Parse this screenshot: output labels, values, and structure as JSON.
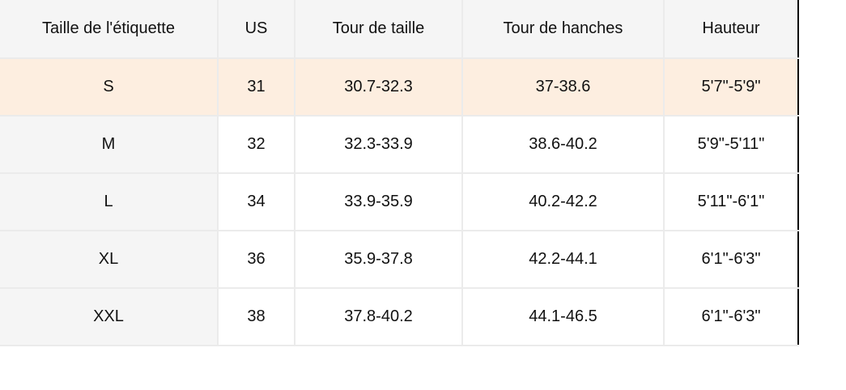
{
  "headers": [
    "Taille de l'étiquette",
    "US",
    "Tour de taille",
    "Tour de hanches",
    "Hauteur"
  ],
  "rows": [
    [
      "S",
      "31",
      "30.7-32.3",
      "37-38.6",
      "5'7\"-5'9\""
    ],
    [
      "M",
      "32",
      "32.3-33.9",
      "38.6-40.2",
      "5'9\"-5'11\""
    ],
    [
      "L",
      "34",
      "33.9-35.9",
      "40.2-42.2",
      "5'11\"-6'1\""
    ],
    [
      "XL",
      "36",
      "35.9-37.8",
      "42.2-44.1",
      "6'1\"-6'3\""
    ],
    [
      "XXL",
      "38",
      "37.8-40.2",
      "44.1-46.5",
      "6'1\"-6'3\""
    ]
  ],
  "highlight_row_color": "#fdeee0"
}
